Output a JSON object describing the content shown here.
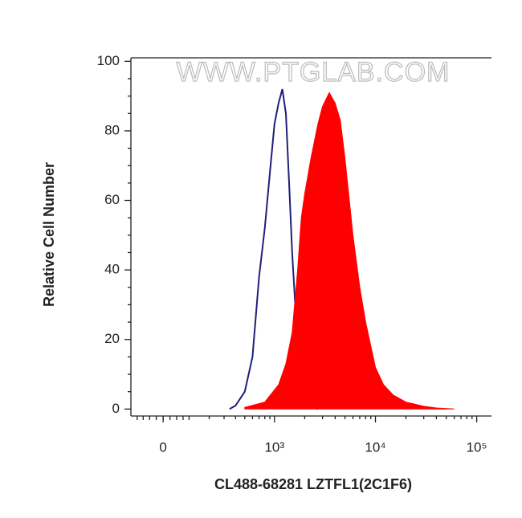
{
  "chart_data": {
    "type": "histogram_overlay",
    "xlabel": "CL488-68281 LZTFL1(2C1F6)",
    "ylabel": "Relative Cell Number",
    "watermark": "WWW.PTGLAB.COM",
    "xscale": "biexponential",
    "xlim": [
      -128,
      140000
    ],
    "xticks": [
      0,
      {
        "value": 1000,
        "label": "10³"
      },
      {
        "value": 10000,
        "label": "10⁴"
      },
      {
        "value": 100000,
        "label": "10⁵"
      }
    ],
    "ylim": [
      -2,
      101
    ],
    "yticks": [
      0,
      20,
      40,
      60,
      80,
      100
    ],
    "series": [
      {
        "style": "outline",
        "color": "#1f1f7a",
        "x": [
          345,
          400,
          500,
          600,
          700,
          800,
          900,
          1000,
          1100,
          1200,
          1300,
          1400,
          1500,
          1700,
          2000,
          2300,
          2700
        ],
        "values": [
          0,
          1,
          5,
          15,
          38,
          52,
          68,
          82,
          88,
          92,
          85,
          65,
          45,
          18,
          4,
          1,
          0
        ]
      },
      {
        "style": "filled",
        "color": "#ff0000",
        "x": [
          500,
          800,
          1100,
          1300,
          1500,
          1700,
          1850,
          2000,
          2300,
          2700,
          3000,
          3500,
          4000,
          4500,
          5000,
          6000,
          7000,
          8000,
          10000,
          12000,
          15000,
          20000,
          30000,
          40000,
          60000
        ],
        "values": [
          0.5,
          2,
          7,
          13,
          22,
          40,
          55,
          62,
          72,
          82,
          87,
          91,
          88,
          83,
          72,
          50,
          35,
          25,
          12,
          7,
          4,
          2,
          0.8,
          0.3,
          0
        ]
      }
    ]
  }
}
